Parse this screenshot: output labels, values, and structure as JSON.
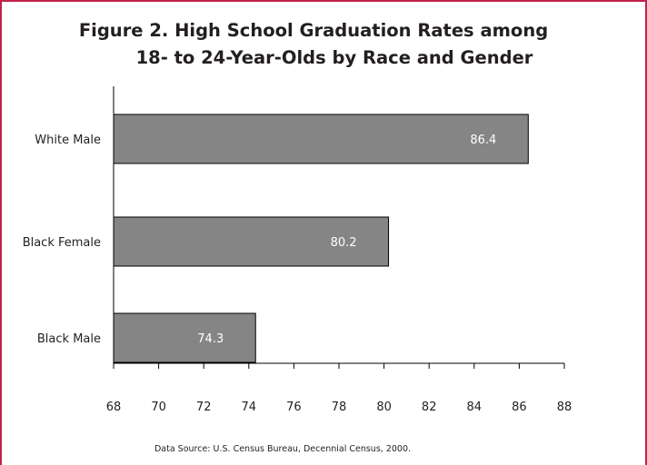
{
  "chart_data": {
    "type": "bar",
    "orientation": "horizontal",
    "title_lines": [
      "Figure 2. High School Graduation Rates among",
      "18- to 24-Year-Olds by Race and Gender"
    ],
    "categories": [
      "White Male",
      "Black Female",
      "Black Male"
    ],
    "values": [
      86.4,
      80.2,
      74.3
    ],
    "data_labels": [
      "86.4",
      "80.2",
      "74.3"
    ],
    "xlim": [
      68,
      88
    ],
    "xticks": [
      "68",
      "70",
      "72",
      "74",
      "76",
      "78",
      "80",
      "82",
      "84",
      "86",
      "88"
    ],
    "xlabel": "",
    "ylabel": "",
    "grid": false,
    "legend": "none",
    "source": "Data Source: U.S. Census Bureau, Decennial Census, 2000.",
    "colors": {
      "bar": "#858585",
      "bar_edge": "#000000",
      "frame": "#c0234a",
      "axis": "#000000"
    }
  }
}
